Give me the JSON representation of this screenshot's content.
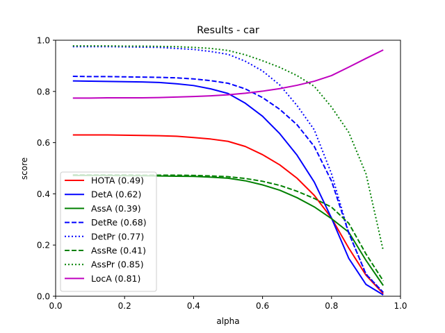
{
  "chart_data": {
    "type": "line",
    "title": "Results - car",
    "xlabel": "alpha",
    "ylabel": "score",
    "xlim": [
      0.0,
      1.0
    ],
    "ylim": [
      0.0,
      1.0
    ],
    "xticks": [
      "0.0",
      "0.2",
      "0.4",
      "0.6",
      "0.8",
      "1.0"
    ],
    "yticks": [
      "0.0",
      "0.2",
      "0.4",
      "0.6",
      "0.8",
      "1.0"
    ],
    "grid": false,
    "legend_position": "lower-left",
    "x": [
      0.05,
      0.1,
      0.15,
      0.2,
      0.25,
      0.3,
      0.35,
      0.4,
      0.45,
      0.5,
      0.55,
      0.6,
      0.65,
      0.7,
      0.75,
      0.8,
      0.85,
      0.9,
      0.95
    ],
    "series": [
      {
        "name": "HOTA (0.49)",
        "color": "#ff0000",
        "dash": "solid",
        "values": [
          0.63,
          0.63,
          0.63,
          0.629,
          0.628,
          0.627,
          0.625,
          0.62,
          0.614,
          0.605,
          0.585,
          0.553,
          0.513,
          0.461,
          0.394,
          0.305,
          0.188,
          0.082,
          0.01
        ]
      },
      {
        "name": "DetA (0.62)",
        "color": "#0000ff",
        "dash": "solid",
        "values": [
          0.841,
          0.84,
          0.839,
          0.838,
          0.837,
          0.835,
          0.83,
          0.823,
          0.81,
          0.792,
          0.754,
          0.703,
          0.635,
          0.551,
          0.446,
          0.305,
          0.148,
          0.046,
          0.005
        ]
      },
      {
        "name": "AssA (0.39)",
        "color": "#008000",
        "dash": "solid",
        "values": [
          0.472,
          0.472,
          0.472,
          0.471,
          0.471,
          0.47,
          0.469,
          0.468,
          0.465,
          0.461,
          0.451,
          0.435,
          0.414,
          0.385,
          0.349,
          0.303,
          0.25,
          0.14,
          0.042
        ]
      },
      {
        "name": "DetRe (0.68)",
        "color": "#0000ff",
        "dash": "dashed",
        "values": [
          0.859,
          0.858,
          0.858,
          0.857,
          0.856,
          0.855,
          0.853,
          0.849,
          0.842,
          0.832,
          0.81,
          0.776,
          0.73,
          0.67,
          0.585,
          0.45,
          0.247,
          0.086,
          0.015
        ]
      },
      {
        "name": "DetPr (0.77)",
        "color": "#0000ff",
        "dash": "dotted",
        "values": [
          0.975,
          0.975,
          0.975,
          0.974,
          0.973,
          0.972,
          0.968,
          0.964,
          0.956,
          0.945,
          0.918,
          0.88,
          0.825,
          0.745,
          0.65,
          0.478,
          0.247,
          0.087,
          0.015
        ]
      },
      {
        "name": "AssRe (0.41)",
        "color": "#008000",
        "dash": "dashed",
        "values": [
          0.474,
          0.474,
          0.474,
          0.474,
          0.473,
          0.473,
          0.473,
          0.472,
          0.47,
          0.467,
          0.46,
          0.449,
          0.433,
          0.41,
          0.382,
          0.348,
          0.285,
          0.165,
          0.06
        ]
      },
      {
        "name": "AssPr (0.85)",
        "color": "#008000",
        "dash": "dotted",
        "values": [
          0.978,
          0.978,
          0.978,
          0.977,
          0.977,
          0.976,
          0.975,
          0.972,
          0.968,
          0.96,
          0.943,
          0.92,
          0.894,
          0.862,
          0.82,
          0.739,
          0.64,
          0.478,
          0.178
        ]
      },
      {
        "name": "LocA (0.81)",
        "color": "#bf00bf",
        "dash": "solid",
        "values": [
          0.774,
          0.774,
          0.775,
          0.775,
          0.775,
          0.776,
          0.778,
          0.78,
          0.783,
          0.787,
          0.793,
          0.801,
          0.811,
          0.824,
          0.84,
          0.862,
          0.895,
          0.929,
          0.962
        ]
      }
    ]
  }
}
